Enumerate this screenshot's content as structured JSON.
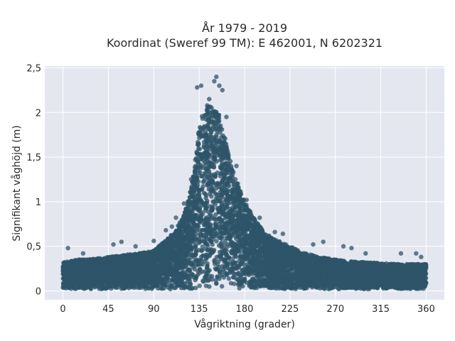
{
  "chart_data": {
    "type": "scatter",
    "title": "År 1979 - 2019",
    "subtitle": "Koordinat (Sweref 99 TM): E 462001, N 6202321",
    "xlabel": "Vågriktning (grader)",
    "ylabel": "Signifikant våghöjd (m)",
    "xlim": [
      -18,
      378
    ],
    "ylim": [
      -0.1,
      2.52
    ],
    "x_ticks": [
      0,
      45,
      90,
      135,
      180,
      225,
      270,
      315,
      360
    ],
    "x_tick_labels": [
      "0",
      "45",
      "90",
      "135",
      "180",
      "225",
      "270",
      "315",
      "360"
    ],
    "y_ticks": [
      0,
      0.5,
      1,
      1.5,
      2,
      2.5
    ],
    "y_tick_labels": [
      "0",
      "0,5",
      "1",
      "1,5",
      "2",
      "2,5"
    ],
    "grid": true,
    "legend": "none",
    "marker_color": "#2e5468",
    "background_color": "#e5e7f0",
    "envelope": {
      "direction_deg": [
        0,
        15,
        30,
        45,
        60,
        75,
        90,
        100,
        110,
        120,
        125,
        130,
        135,
        140,
        145,
        150,
        155,
        160,
        165,
        170,
        180,
        190,
        200,
        210,
        225,
        240,
        255,
        270,
        285,
        300,
        315,
        330,
        345,
        360
      ],
      "max_height_m": [
        0.32,
        0.35,
        0.36,
        0.38,
        0.4,
        0.42,
        0.45,
        0.55,
        0.65,
        0.85,
        1.05,
        1.35,
        1.85,
        2.05,
        2.1,
        2.05,
        2.0,
        1.75,
        1.5,
        1.3,
        1.0,
        0.8,
        0.65,
        0.58,
        0.5,
        0.42,
        0.38,
        0.35,
        0.33,
        0.32,
        0.31,
        0.3,
        0.3,
        0.3
      ]
    },
    "outliers": [
      {
        "x": 5,
        "y": 0.48
      },
      {
        "x": 20,
        "y": 0.42
      },
      {
        "x": 50,
        "y": 0.52
      },
      {
        "x": 58,
        "y": 0.55
      },
      {
        "x": 72,
        "y": 0.5
      },
      {
        "x": 90,
        "y": 0.56
      },
      {
        "x": 102,
        "y": 0.68
      },
      {
        "x": 108,
        "y": 0.72
      },
      {
        "x": 112,
        "y": 0.82
      },
      {
        "x": 120,
        "y": 0.98
      },
      {
        "x": 127,
        "y": 1.25
      },
      {
        "x": 133,
        "y": 2.28
      },
      {
        "x": 137,
        "y": 2.3
      },
      {
        "x": 145,
        "y": 2.15
      },
      {
        "x": 150,
        "y": 2.35
      },
      {
        "x": 152,
        "y": 2.4
      },
      {
        "x": 155,
        "y": 2.3
      },
      {
        "x": 158,
        "y": 2.25
      },
      {
        "x": 162,
        "y": 1.95
      },
      {
        "x": 172,
        "y": 1.4
      },
      {
        "x": 182,
        "y": 1.02
      },
      {
        "x": 195,
        "y": 0.82
      },
      {
        "x": 210,
        "y": 0.66
      },
      {
        "x": 218,
        "y": 0.64
      },
      {
        "x": 248,
        "y": 0.52
      },
      {
        "x": 258,
        "y": 0.55
      },
      {
        "x": 278,
        "y": 0.5
      },
      {
        "x": 286,
        "y": 0.48
      },
      {
        "x": 300,
        "y": 0.42
      },
      {
        "x": 335,
        "y": 0.42
      },
      {
        "x": 350,
        "y": 0.42
      },
      {
        "x": 355,
        "y": 0.38
      }
    ]
  }
}
